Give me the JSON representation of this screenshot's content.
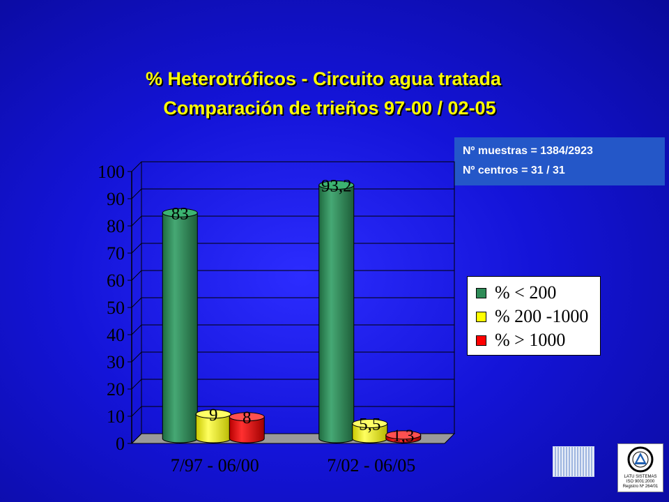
{
  "title_line1": "% Heterotróficos - Circuito agua tratada",
  "title_line2": "Comparación  de  trieños 97-00 / 02-05",
  "info": {
    "line1": "Nº muestras = 1384/2923",
    "line2": "Nº centros = 31 / 31"
  },
  "legend": [
    {
      "label": "%  < 200",
      "color": "#2e8b57"
    },
    {
      "label": "%  200 -1000",
      "color": "#ffff00"
    },
    {
      "label": "%  > 1000",
      "color": "#ff0000"
    }
  ],
  "logo2": {
    "line1": "LATU SISTEMAS",
    "line2": "ISO 9001:2000",
    "line3": "Registro Nº 264/01"
  },
  "chart_data": {
    "type": "bar",
    "categories": [
      "7/97 - 06/00",
      "7/02 - 06/05"
    ],
    "series": [
      {
        "name": "%  < 200",
        "values": [
          83,
          93.2
        ],
        "labels": [
          "83",
          "93,2"
        ],
        "color": "#2e8b57"
      },
      {
        "name": "%  200 -1000",
        "values": [
          9,
          5.5
        ],
        "labels": [
          "9",
          "5,5"
        ],
        "color": "#ffff00"
      },
      {
        "name": "%  > 1000",
        "values": [
          8,
          1.3
        ],
        "labels": [
          "8",
          "1,3"
        ],
        "color": "#ff0000"
      }
    ],
    "ylim": [
      0,
      100
    ],
    "yticks": [
      0,
      10,
      20,
      30,
      40,
      50,
      60,
      70,
      80,
      90,
      100
    ],
    "grid": true,
    "legend_position": "right"
  }
}
